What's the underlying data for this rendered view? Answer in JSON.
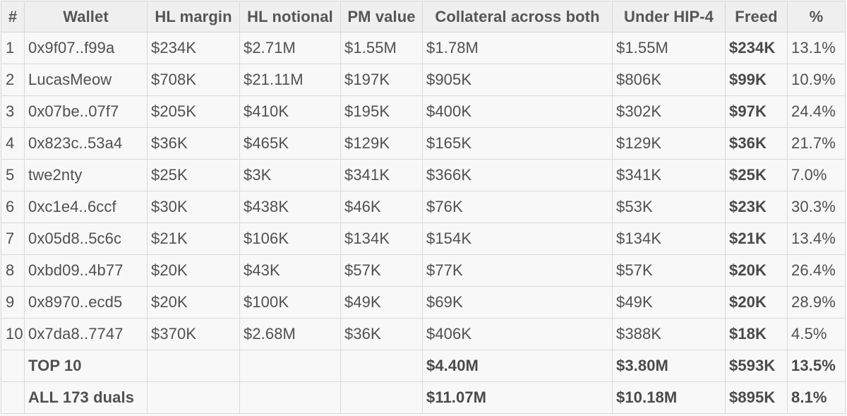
{
  "table": {
    "headers": [
      "#",
      "Wallet",
      "HL margin",
      "HL notional",
      "PM value",
      "Collateral across both",
      "Under HIP-4",
      "Freed",
      "%"
    ],
    "rows": [
      [
        "1",
        "0x9f07..f99a",
        "$234K",
        "$2.71M",
        "$1.55M",
        "$1.78M",
        "$1.55M",
        "$234K",
        "13.1%"
      ],
      [
        "2",
        "LucasMeow",
        "$708K",
        "$21.11M",
        "$197K",
        "$905K",
        "$806K",
        "$99K",
        "10.9%"
      ],
      [
        "3",
        "0x07be..07f7",
        "$205K",
        "$410K",
        "$195K",
        "$400K",
        "$302K",
        "$97K",
        "24.4%"
      ],
      [
        "4",
        "0x823c..53a4",
        "$36K",
        "$465K",
        "$129K",
        "$165K",
        "$129K",
        "$36K",
        "21.7%"
      ],
      [
        "5",
        "twe2nty",
        "$25K",
        "$3K",
        "$341K",
        "$366K",
        "$341K",
        "$25K",
        "7.0%"
      ],
      [
        "6",
        "0xc1e4..6ccf",
        "$30K",
        "$438K",
        "$46K",
        "$76K",
        "$53K",
        "$23K",
        "30.3%"
      ],
      [
        "7",
        "0x05d8..5c6c",
        "$21K",
        "$106K",
        "$134K",
        "$154K",
        "$134K",
        "$21K",
        "13.4%"
      ],
      [
        "8",
        "0xbd09..4b77",
        "$20K",
        "$43K",
        "$57K",
        "$77K",
        "$57K",
        "$20K",
        "26.4%"
      ],
      [
        "9",
        "0x8970..ecd5",
        "$20K",
        "$100K",
        "$49K",
        "$69K",
        "$49K",
        "$20K",
        "28.9%"
      ],
      [
        "10",
        "0x7da8..7747",
        "$370K",
        "$2.68M",
        "$36K",
        "$406K",
        "$388K",
        "$18K",
        "4.5%"
      ]
    ],
    "summary": [
      [
        "",
        "TOP 10",
        "",
        "",
        "",
        "$4.40M",
        "$3.80M",
        "$593K",
        "13.5%"
      ],
      [
        "",
        "ALL 173 duals",
        "",
        "",
        "",
        "$11.07M",
        "$10.18M",
        "$895K",
        "8.1%"
      ]
    ]
  }
}
